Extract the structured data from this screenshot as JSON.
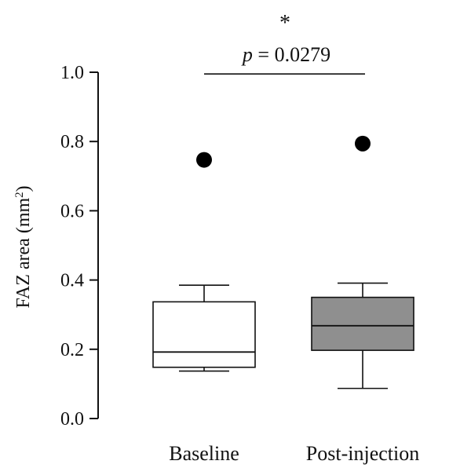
{
  "chart_data": {
    "type": "box",
    "title": "",
    "xlabel": "",
    "ylabel": {
      "text": "FAZ area (mm",
      "superscript": "2",
      "suffix": ")"
    },
    "ylim": [
      0.0,
      1.0
    ],
    "yticks": [
      "0.0",
      "0.2",
      "0.4",
      "0.6",
      "0.8",
      "1.0"
    ],
    "grid": false,
    "legend": "none",
    "categories": [
      "Baseline",
      "Post-injection"
    ],
    "boxes": [
      {
        "category": "Baseline",
        "whisker_low": 0.137,
        "q1": 0.148,
        "median": 0.192,
        "q3": 0.337,
        "whisker_high": 0.385,
        "outliers": [
          0.747
        ],
        "fill": "#ffffff"
      },
      {
        "category": "Post-injection",
        "whisker_low": 0.087,
        "q1": 0.197,
        "median": 0.268,
        "q3": 0.35,
        "whisker_high": 0.391,
        "outliers": [
          0.794
        ],
        "fill": "#8f8f8f"
      }
    ],
    "significance": {
      "star": "*",
      "p_symbol": "p",
      "p_rest": " = 0.0279",
      "y": 0.995
    },
    "colors": {
      "axis": "#111111",
      "outlier": "#000000"
    }
  }
}
